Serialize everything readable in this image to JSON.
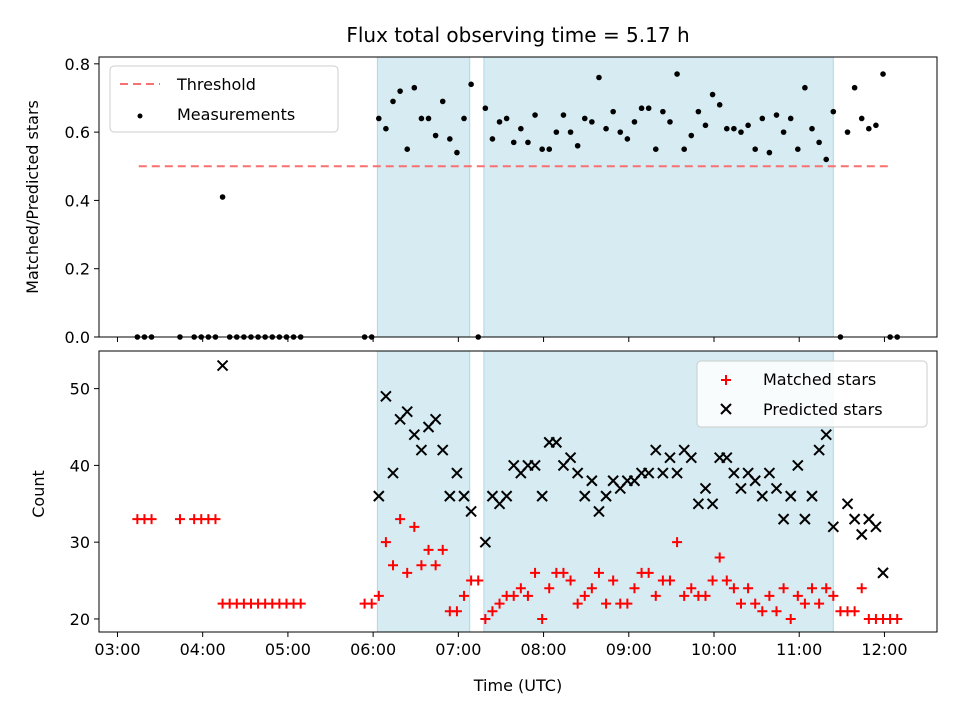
{
  "chart_data": [
    {
      "type": "scatter",
      "title": "Flux total observing time = 5.17 h",
      "xlabel": "",
      "ylabel": "Matched/Predicted stars",
      "ylim": [
        0,
        0.82
      ],
      "xlim": [
        "02:47",
        "12:37"
      ],
      "x_tick_labels": [
        "03:00",
        "04:00",
        "05:00",
        "06:00",
        "07:00",
        "08:00",
        "09:00",
        "10:00",
        "11:00",
        "12:00"
      ],
      "y_ticks": [
        0.0,
        0.2,
        0.4,
        0.6,
        0.8
      ],
      "y_tick_labels": [
        "0.0",
        "0.2",
        "0.4",
        "0.6",
        "0.8"
      ],
      "shaded_intervals": [
        [
          "06:03",
          "07:08"
        ],
        [
          "07:18",
          "11:24"
        ]
      ],
      "legend_position": "top-left",
      "threshold": {
        "name": "Threshold",
        "value": 0.5,
        "x_range": [
          "03:15",
          "12:05"
        ],
        "color": "#f87171"
      },
      "series": [
        {
          "name": "Measurements",
          "color": "#000000",
          "x": [
            "03:14",
            "03:19",
            "03:24",
            "03:44",
            "03:54",
            "03:59",
            "04:04",
            "04:09",
            "04:14",
            "04:19",
            "04:24",
            "04:29",
            "04:34",
            "04:39",
            "04:44",
            "04:49",
            "04:54",
            "04:59",
            "05:04",
            "05:09",
            "05:54",
            "05:59",
            "06:04",
            "06:09",
            "06:14",
            "06:19",
            "06:24",
            "06:29",
            "06:34",
            "06:39",
            "06:44",
            "06:49",
            "06:54",
            "06:59",
            "07:04",
            "07:09",
            "07:14",
            "07:19",
            "07:24",
            "07:29",
            "07:34",
            "07:39",
            "07:44",
            "07:49",
            "07:54",
            "07:59",
            "08:04",
            "08:09",
            "08:14",
            "08:19",
            "08:24",
            "08:29",
            "08:34",
            "08:39",
            "08:44",
            "08:49",
            "08:54",
            "08:59",
            "09:04",
            "09:09",
            "09:14",
            "09:19",
            "09:24",
            "09:29",
            "09:34",
            "09:39",
            "09:44",
            "09:49",
            "09:54",
            "09:59",
            "10:04",
            "10:09",
            "10:14",
            "10:19",
            "10:24",
            "10:29",
            "10:34",
            "10:39",
            "10:44",
            "10:49",
            "10:54",
            "10:59",
            "11:04",
            "11:09",
            "11:14",
            "11:19",
            "11:24",
            "11:29",
            "11:34",
            "11:39",
            "11:44",
            "11:49",
            "11:54",
            "11:59",
            "12:04",
            "12:09"
          ],
          "y": [
            0,
            0,
            0,
            0,
            0,
            0,
            0,
            0,
            0.41,
            0,
            0,
            0,
            0,
            0,
            0,
            0,
            0,
            0,
            0,
            0,
            0,
            0,
            0.64,
            0.61,
            0.69,
            0.72,
            0.55,
            0.73,
            0.64,
            0.64,
            0.59,
            0.69,
            0.58,
            0.54,
            0.64,
            0.74,
            0,
            0.67,
            0.58,
            0.63,
            0.64,
            0.57,
            0.61,
            0.57,
            0.65,
            0.55,
            0.55,
            0.6,
            0.65,
            0.6,
            0.56,
            0.64,
            0.63,
            0.76,
            0.61,
            0.66,
            0.6,
            0.58,
            0.63,
            0.67,
            0.67,
            0.55,
            0.66,
            0.63,
            0.77,
            0.55,
            0.59,
            0.66,
            0.62,
            0.71,
            0.68,
            0.61,
            0.61,
            0.6,
            0.62,
            0.55,
            0.64,
            0.54,
            0.65,
            0.6,
            0.64,
            0.55,
            0.73,
            0.61,
            0.57,
            0.52,
            0.66,
            0,
            0.6,
            0.73,
            0.64,
            0.61,
            0.62,
            0.77,
            0,
            0
          ]
        }
      ]
    },
    {
      "type": "scatter",
      "title": "",
      "xlabel": "Time (UTC)",
      "ylabel": "Count",
      "ylim": [
        18.3,
        54.9
      ],
      "xlim": [
        "02:47",
        "12:37"
      ],
      "x_tick_labels": [
        "03:00",
        "04:00",
        "05:00",
        "06:00",
        "07:00",
        "08:00",
        "09:00",
        "10:00",
        "11:00",
        "12:00"
      ],
      "y_ticks": [
        20,
        30,
        40,
        50
      ],
      "y_tick_labels": [
        "20",
        "30",
        "40",
        "50"
      ],
      "shaded_intervals": [
        [
          "06:03",
          "07:08"
        ],
        [
          "07:18",
          "11:24"
        ]
      ],
      "legend_position": "top-right",
      "series": [
        {
          "name": "Matched stars",
          "color": "#ff0000",
          "marker": "+",
          "x": [
            "03:14",
            "03:19",
            "03:24",
            "03:44",
            "03:54",
            "03:59",
            "04:04",
            "04:09",
            "04:14",
            "04:19",
            "04:24",
            "04:29",
            "04:34",
            "04:39",
            "04:44",
            "04:49",
            "04:54",
            "04:59",
            "05:04",
            "05:09",
            "05:54",
            "05:59",
            "06:04",
            "06:09",
            "06:14",
            "06:19",
            "06:24",
            "06:29",
            "06:34",
            "06:39",
            "06:44",
            "06:49",
            "06:54",
            "06:59",
            "07:04",
            "07:09",
            "07:14",
            "07:19",
            "07:24",
            "07:29",
            "07:34",
            "07:39",
            "07:44",
            "07:49",
            "07:54",
            "07:59",
            "08:04",
            "08:09",
            "08:14",
            "08:19",
            "08:24",
            "08:29",
            "08:34",
            "08:39",
            "08:44",
            "08:49",
            "08:54",
            "08:59",
            "09:04",
            "09:09",
            "09:14",
            "09:19",
            "09:24",
            "09:29",
            "09:34",
            "09:39",
            "09:44",
            "09:49",
            "09:54",
            "09:59",
            "10:04",
            "10:09",
            "10:14",
            "10:19",
            "10:24",
            "10:29",
            "10:34",
            "10:39",
            "10:44",
            "10:49",
            "10:54",
            "10:59",
            "11:04",
            "11:09",
            "11:14",
            "11:19",
            "11:24",
            "11:29",
            "11:34",
            "11:39",
            "11:44",
            "11:49",
            "11:54",
            "11:59",
            "12:04",
            "12:09"
          ],
          "y": [
            33,
            33,
            33,
            33,
            33,
            33,
            33,
            33,
            22,
            22,
            22,
            22,
            22,
            22,
            22,
            22,
            22,
            22,
            22,
            22,
            22,
            22,
            23,
            30,
            27,
            33,
            26,
            32,
            27,
            29,
            27,
            29,
            21,
            21,
            23,
            25,
            25,
            20,
            21,
            22,
            23,
            23,
            24,
            23,
            26,
            20,
            24,
            26,
            26,
            25,
            22,
            23,
            24,
            26,
            22,
            25,
            22,
            22,
            24,
            26,
            26,
            23,
            25,
            25,
            30,
            23,
            24,
            23,
            23,
            25,
            28,
            25,
            24,
            22,
            24,
            22,
            21,
            23,
            21,
            24,
            20,
            23,
            22,
            24,
            22,
            24,
            23,
            21,
            21,
            21,
            24,
            20,
            20,
            20,
            20,
            20
          ]
        },
        {
          "name": "Predicted stars",
          "color": "#000000",
          "marker": "x",
          "x": [
            "04:14",
            "06:04",
            "06:09",
            "06:14",
            "06:19",
            "06:24",
            "06:29",
            "06:34",
            "06:39",
            "06:44",
            "06:49",
            "06:54",
            "06:59",
            "07:04",
            "07:09",
            "07:19",
            "07:24",
            "07:29",
            "07:34",
            "07:39",
            "07:44",
            "07:49",
            "07:54",
            "07:59",
            "08:04",
            "08:09",
            "08:14",
            "08:19",
            "08:24",
            "08:29",
            "08:34",
            "08:39",
            "08:44",
            "08:49",
            "08:54",
            "08:59",
            "09:04",
            "09:09",
            "09:14",
            "09:19",
            "09:24",
            "09:29",
            "09:34",
            "09:39",
            "09:44",
            "09:49",
            "09:54",
            "09:59",
            "10:04",
            "10:09",
            "10:14",
            "10:19",
            "10:24",
            "10:29",
            "10:34",
            "10:39",
            "10:44",
            "10:49",
            "10:54",
            "10:59",
            "11:04",
            "11:09",
            "11:14",
            "11:19",
            "11:24",
            "11:34",
            "11:39",
            "11:44",
            "11:49",
            "11:54",
            "11:59"
          ],
          "y": [
            53,
            36,
            49,
            39,
            46,
            47,
            44,
            42,
            45,
            46,
            42,
            36,
            39,
            36,
            34,
            30,
            36,
            35,
            36,
            40,
            39,
            40,
            40,
            36,
            43,
            43,
            40,
            41,
            39,
            36,
            38,
            34,
            36,
            38,
            37,
            38,
            38,
            39,
            39,
            42,
            39,
            41,
            39,
            42,
            41,
            35,
            37,
            35,
            41,
            41,
            39,
            37,
            39,
            38,
            36,
            39,
            37,
            33,
            36,
            40,
            33,
            36,
            42,
            44,
            32,
            35,
            33,
            31,
            33,
            32,
            26
          ]
        }
      ]
    }
  ]
}
